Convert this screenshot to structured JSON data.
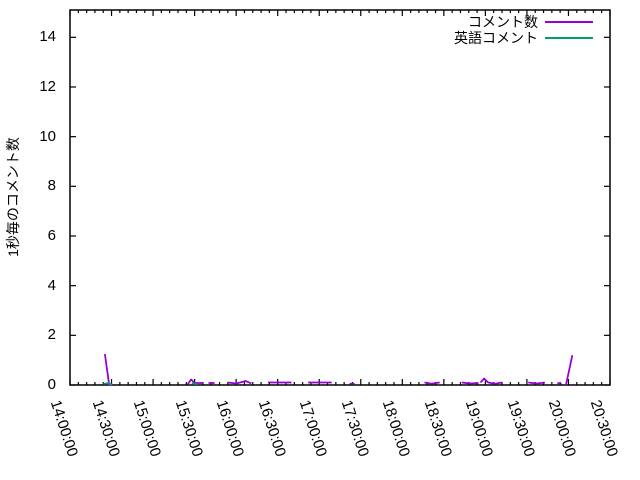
{
  "chart_data": {
    "type": "line",
    "title": "",
    "xlabel": "",
    "ylabel": "1秒毎のコメント数",
    "grid": false,
    "legend_position": "top-right-inside",
    "background_color": "#ffffff",
    "border_color": "#000000",
    "x_axis": {
      "unit": "time",
      "range_minutes": [
        0,
        390
      ],
      "tick_interval_minutes": 30,
      "minor_divisions": 5,
      "tick_labels": [
        "14:00:00",
        "14:30:00",
        "15:00:00",
        "15:30:00",
        "16:00:00",
        "16:30:00",
        "17:00:00",
        "17:30:00",
        "18:00:00",
        "18:30:00",
        "19:00:00",
        "19:30:00",
        "20:00:00",
        "20:30:00"
      ]
    },
    "y_axis": {
      "ticks": [
        0,
        2,
        4,
        6,
        8,
        10,
        12,
        14
      ],
      "range": [
        0,
        15.1
      ]
    },
    "series": [
      {
        "name": "コメント数",
        "color": "#9400d3",
        "segments": [
          [
            [
              25.2,
              1.25
            ],
            [
              28.3,
              0
            ],
            [
              30.5,
              0
            ]
          ],
          [
            [
              85,
              0.03
            ],
            [
              87.5,
              0.22
            ],
            [
              90,
              0.08
            ],
            [
              96,
              0.08
            ]
          ],
          [
            [
              100,
              0.08
            ],
            [
              104.5,
              0.08
            ]
          ],
          [
            [
              114,
              0.1
            ],
            [
              120,
              0.06
            ],
            [
              127,
              0.16
            ],
            [
              131,
              0.06
            ]
          ],
          [
            [
              143,
              0.1
            ],
            [
              151,
              0.1
            ],
            [
              160,
              0.1
            ]
          ],
          [
            [
              172,
              0.1
            ],
            [
              180,
              0.1
            ],
            [
              189,
              0.1
            ]
          ],
          [
            [
              202,
              0.05
            ],
            [
              205.5,
              0.05
            ]
          ],
          [
            [
              256,
              0.1
            ],
            [
              261,
              0.05
            ],
            [
              267,
              0.1
            ]
          ],
          [
            [
              283,
              0.1
            ],
            [
              289,
              0.06
            ],
            [
              295,
              0.08
            ]
          ],
          [
            [
              296.5,
              0.1
            ],
            [
              299,
              0.26
            ],
            [
              302,
              0.1
            ],
            [
              307,
              0.05
            ],
            [
              312,
              0.1
            ]
          ],
          [
            [
              331,
              0.1
            ],
            [
              337,
              0.06
            ],
            [
              343,
              0.1
            ]
          ],
          [
            [
              352,
              0.08
            ],
            [
              355,
              0.05
            ]
          ],
          [
            [
              358.2,
              0
            ],
            [
              362.8,
              1.2
            ]
          ]
        ]
      },
      {
        "name": "英語コメント",
        "color": "#009e73",
        "segments": [
          [
            [
              24,
              0.04
            ],
            [
              27,
              0.07
            ],
            [
              30.5,
              0.02
            ]
          ],
          [
            [
              88,
              0.07
            ],
            [
              91.5,
              0.03
            ]
          ]
        ]
      }
    ]
  }
}
